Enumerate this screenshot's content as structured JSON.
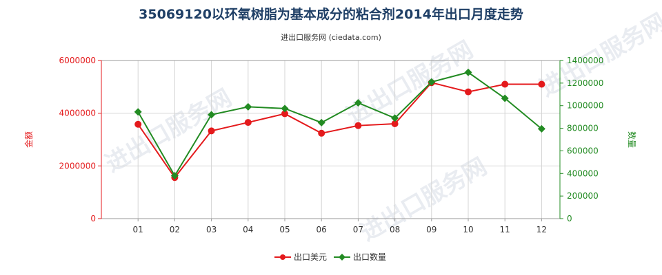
{
  "chart_data": {
    "type": "line",
    "title": "35069120以环氧树脂为基本成分的粘合剂2014年出口月度走势",
    "subtitle": "进出口服务网 (ciedata.com)",
    "categories": [
      "01",
      "02",
      "03",
      "04",
      "05",
      "06",
      "07",
      "08",
      "09",
      "10",
      "11",
      "12"
    ],
    "grid": true,
    "legend_position": "bottom",
    "left_axis": {
      "label": "金额",
      "range": [
        0,
        6000000
      ],
      "ticks": [
        "0",
        "2000000",
        "4000000",
        "6000000"
      ],
      "color": "#e41a1c"
    },
    "right_axis": {
      "label": "数量",
      "range": [
        0,
        1400000
      ],
      "ticks": [
        "0",
        "200000",
        "400000",
        "600000",
        "800000",
        "1000000",
        "1200000",
        "1400000"
      ],
      "color": "#228b22"
    },
    "series": [
      {
        "name": "出口美元",
        "axis": "left",
        "color": "#e41a1c",
        "values": [
          3580000,
          1560000,
          3330000,
          3650000,
          3980000,
          3240000,
          3530000,
          3600000,
          5160000,
          4810000,
          5100000,
          5100000
        ]
      },
      {
        "name": "出口数量",
        "axis": "right",
        "color": "#228b22",
        "values": [
          945000,
          380000,
          920000,
          990000,
          975000,
          850000,
          1025000,
          890000,
          1210000,
          1295000,
          1065000,
          795000
        ]
      }
    ]
  },
  "watermark_text": "进出口服务网"
}
